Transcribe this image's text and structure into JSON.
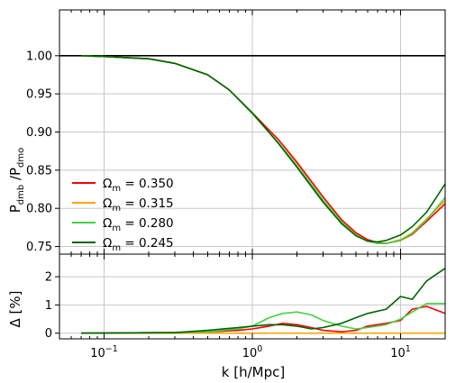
{
  "chart_data": [
    {
      "type": "line",
      "panel": "top",
      "xscale": "log",
      "xlim": [
        0.05,
        20
      ],
      "ylim": [
        0.74,
        1.06
      ],
      "xticks": [
        {
          "value": 0.1,
          "base": "10",
          "exp": "−1"
        },
        {
          "value": 1,
          "base": "10",
          "exp": "0"
        },
        {
          "value": 10,
          "base": "10",
          "exp": "1"
        }
      ],
      "yticks": [
        "0.75",
        "0.80",
        "0.85",
        "0.90",
        "0.95",
        "1.00"
      ],
      "ylabel": {
        "main": "P",
        "sub1": "dmb",
        "mid": " /P",
        "sub2": "dmo"
      },
      "grid": true,
      "legend_position": "lower-left",
      "reference_line": 1.0,
      "series": [
        {
          "name": "Ω",
          "name_sub": "m",
          "name_value": " = 0.350",
          "color": "#ff0000",
          "x": [
            0.07,
            0.1,
            0.2,
            0.3,
            0.5,
            0.7,
            1.0,
            1.5,
            2.0,
            3.0,
            4.0,
            5.0,
            6.0,
            7.0,
            8.0,
            10.0,
            12.0,
            15.0,
            20.0
          ],
          "y": [
            1.0,
            0.999,
            0.996,
            0.99,
            0.975,
            0.955,
            0.925,
            0.89,
            0.86,
            0.815,
            0.785,
            0.768,
            0.759,
            0.755,
            0.754,
            0.758,
            0.766,
            0.783,
            0.806
          ]
        },
        {
          "name": "Ω",
          "name_sub": "m",
          "name_value": " = 0.315",
          "color": "#ffa500",
          "x": [
            0.07,
            0.1,
            0.2,
            0.3,
            0.5,
            0.7,
            1.0,
            1.5,
            2.0,
            3.0,
            4.0,
            5.0,
            6.0,
            7.0,
            8.0,
            10.0,
            12.0,
            15.0,
            20.0
          ],
          "y": [
            1.0,
            0.999,
            0.996,
            0.99,
            0.975,
            0.955,
            0.925,
            0.89,
            0.861,
            0.815,
            0.785,
            0.767,
            0.758,
            0.754,
            0.754,
            0.759,
            0.768,
            0.786,
            0.81
          ]
        },
        {
          "name": "Ω",
          "name_sub": "m",
          "name_value": " = 0.280",
          "color": "#44d144",
          "x": [
            0.07,
            0.1,
            0.2,
            0.3,
            0.5,
            0.7,
            1.0,
            1.5,
            2.0,
            3.0,
            4.0,
            5.0,
            6.0,
            7.0,
            8.0,
            10.0,
            12.0,
            15.0,
            20.0
          ],
          "y": [
            1.0,
            0.999,
            0.996,
            0.99,
            0.975,
            0.955,
            0.924,
            0.886,
            0.856,
            0.811,
            0.782,
            0.765,
            0.757,
            0.754,
            0.754,
            0.758,
            0.767,
            0.785,
            0.814
          ]
        },
        {
          "name": "Ω",
          "name_sub": "m",
          "name_value": " = 0.245",
          "color": "#006400",
          "x": [
            0.07,
            0.1,
            0.2,
            0.3,
            0.5,
            0.7,
            1.0,
            1.5,
            2.0,
            3.0,
            4.0,
            5.0,
            6.0,
            7.0,
            8.0,
            10.0,
            12.0,
            15.0,
            20.0
          ],
          "y": [
            1.0,
            0.999,
            0.996,
            0.99,
            0.975,
            0.955,
            0.925,
            0.885,
            0.854,
            0.808,
            0.78,
            0.764,
            0.757,
            0.756,
            0.758,
            0.765,
            0.776,
            0.795,
            0.832
          ]
        }
      ]
    },
    {
      "type": "line",
      "panel": "bottom",
      "xscale": "log",
      "xlim": [
        0.05,
        20
      ],
      "ylim": [
        -0.2,
        2.8
      ],
      "yticks": [
        "0",
        "1",
        "2"
      ],
      "ylabel": "Δ [%]",
      "xlabel": "k [h/Mpc]",
      "grid": true,
      "series": [
        {
          "name": "Ω_m = 0.350",
          "color": "#ff0000",
          "x": [
            0.07,
            0.3,
            0.5,
            0.8,
            1.0,
            1.3,
            1.6,
            2.0,
            2.5,
            3.0,
            4.0,
            5.0,
            6.0,
            8.0,
            10.0,
            12.0,
            15.0,
            20.0
          ],
          "y": [
            0.0,
            0.02,
            0.05,
            0.1,
            0.15,
            0.25,
            0.35,
            0.3,
            0.2,
            0.1,
            0.05,
            0.1,
            0.25,
            0.35,
            0.45,
            0.85,
            0.95,
            0.7
          ]
        },
        {
          "name": "Ω_m = 0.315",
          "color": "#ffa500",
          "x": [
            0.07,
            0.3,
            0.5,
            0.8,
            1.0,
            1.3,
            1.6,
            2.0,
            2.5,
            3.0,
            4.0,
            5.0,
            6.0,
            8.0,
            10.0,
            12.0,
            15.0,
            20.0
          ],
          "y": [
            0.0,
            0.0,
            0.0,
            0.0,
            0.0,
            0.0,
            0.0,
            0.0,
            0.0,
            0.0,
            0.0,
            0.0,
            0.0,
            0.0,
            0.0,
            0.0,
            0.0,
            0.0
          ]
        },
        {
          "name": "Ω_m = 0.280",
          "color": "#44d144",
          "x": [
            0.07,
            0.3,
            0.5,
            0.8,
            1.0,
            1.3,
            1.6,
            2.0,
            2.5,
            3.0,
            4.0,
            5.0,
            6.0,
            8.0,
            10.0,
            12.0,
            15.0,
            20.0
          ],
          "y": [
            0.0,
            0.02,
            0.05,
            0.15,
            0.25,
            0.55,
            0.7,
            0.75,
            0.65,
            0.45,
            0.25,
            0.15,
            0.2,
            0.3,
            0.5,
            0.75,
            1.05,
            1.05
          ]
        },
        {
          "name": "Ω_m = 0.245",
          "color": "#006400",
          "x": [
            0.07,
            0.3,
            0.5,
            0.8,
            1.0,
            1.3,
            1.6,
            2.0,
            2.5,
            3.0,
            4.0,
            5.0,
            6.0,
            8.0,
            10.0,
            12.0,
            15.0,
            20.0
          ],
          "y": [
            0.0,
            0.02,
            0.1,
            0.2,
            0.25,
            0.3,
            0.3,
            0.25,
            0.15,
            0.2,
            0.35,
            0.55,
            0.7,
            0.85,
            1.3,
            1.2,
            1.85,
            2.3
          ]
        }
      ]
    }
  ]
}
